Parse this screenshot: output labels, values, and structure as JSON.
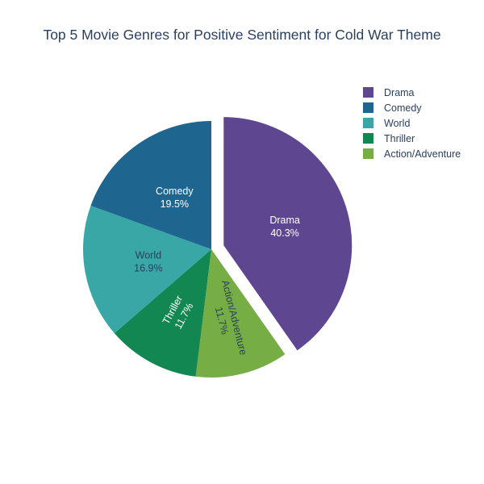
{
  "chart_data": {
    "type": "pie",
    "title": "Top 5 Movie Genres for Positive Sentiment for Cold War Theme",
    "slices": [
      {
        "label": "Drama",
        "percent_label": "40.3%",
        "value": 40.3,
        "color": "#5e4690",
        "text_color": "#ffffff",
        "pulled": true
      },
      {
        "label": "Action/Adventure",
        "percent_label": "11.7%",
        "value": 11.7,
        "color": "#76ad45",
        "text_color": "#2a3f5f",
        "pulled": false
      },
      {
        "label": "Thriller",
        "percent_label": "11.7%",
        "value": 11.7,
        "color": "#128751",
        "text_color": "#ffffff",
        "pulled": false
      },
      {
        "label": "World",
        "percent_label": "16.9%",
        "value": 16.9,
        "color": "#38a7a6",
        "text_color": "#2a3f5f",
        "pulled": false
      },
      {
        "label": "Comedy",
        "percent_label": "19.5%",
        "value": 19.5,
        "color": "#1e6590",
        "text_color": "#ffffff",
        "pulled": false
      }
    ],
    "legend": {
      "placement": "top-right",
      "items": [
        "Drama",
        "Comedy",
        "World",
        "Thriller",
        "Action/Adventure"
      ]
    }
  }
}
